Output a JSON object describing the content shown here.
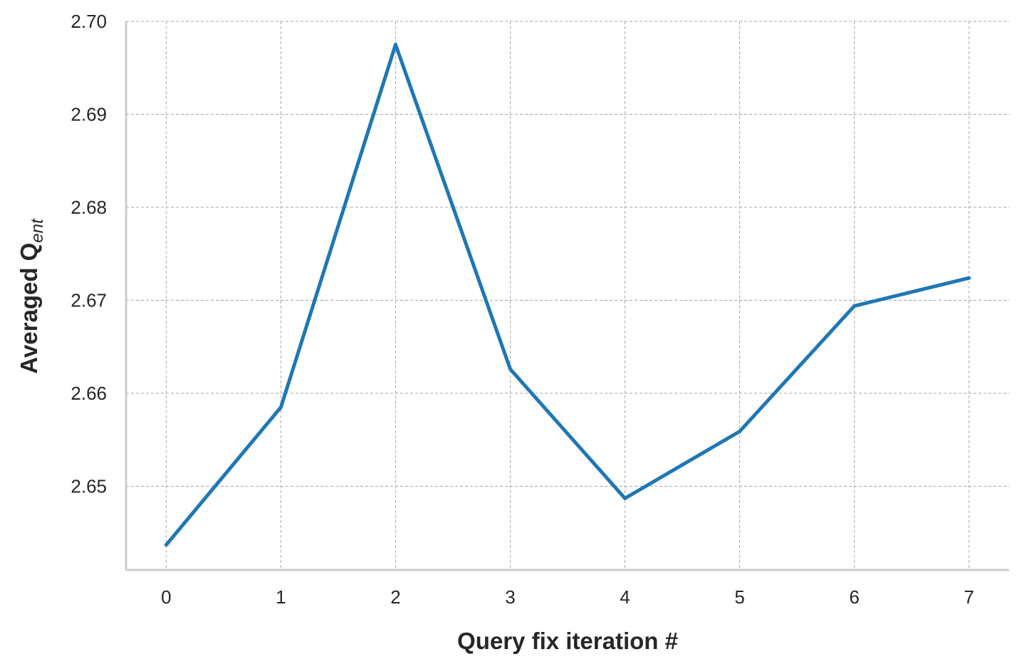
{
  "chart_data": {
    "type": "line",
    "title": "",
    "xlabel": "Query fix iteration #",
    "ylabel": "Averaged Q",
    "ylabel_subscript": "ent",
    "x": [
      0,
      1,
      2,
      3,
      4,
      5,
      6,
      7
    ],
    "x_tick_labels": [
      "0",
      "1",
      "2",
      "3",
      "4",
      "5",
      "6",
      "7"
    ],
    "y_tick_values": [
      2.65,
      2.66,
      2.67,
      2.68,
      2.69,
      2.7
    ],
    "y_tick_labels": [
      "2.65",
      "2.66",
      "2.67",
      "2.68",
      "2.69",
      "2.70"
    ],
    "xlim": [
      -0.35,
      7.35
    ],
    "ylim": [
      2.641,
      2.7
    ],
    "grid": true,
    "series": [
      {
        "values": [
          2.6437,
          2.6585,
          2.6975,
          2.6626,
          2.6487,
          2.6559,
          2.6694,
          2.6724
        ],
        "color": "#1f77b4"
      }
    ]
  }
}
